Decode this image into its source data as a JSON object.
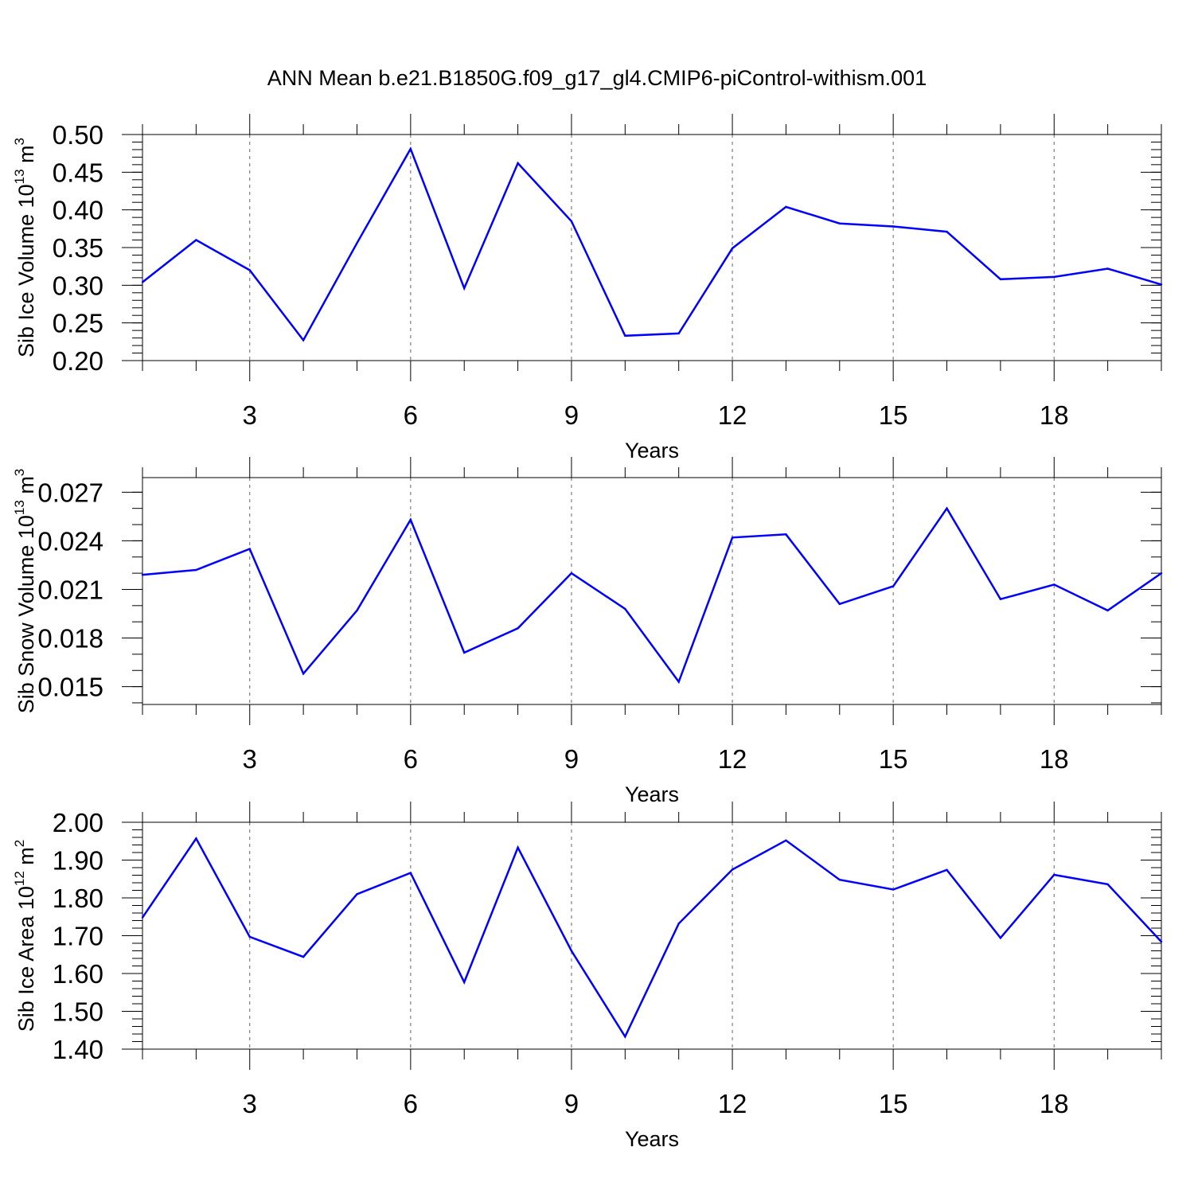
{
  "page_title": "ANN Mean b.e21.B1850G.f09_g17_gl4.CMIP6-piControl-withism.001",
  "colors": {
    "line": "#0000ff",
    "axis": "#000000",
    "grid": "#666666"
  },
  "chart_data": [
    {
      "type": "line",
      "ylabel_main": "Sib Ice Volume 10",
      "ylabel_exp": "13",
      "ylabel_unit": " m",
      "ylabel_unit_exp": "3",
      "xlabel": "Years",
      "xlim": [
        1,
        20
      ],
      "ylim": [
        0.2,
        0.5
      ],
      "yticks": [
        0.2,
        0.25,
        0.3,
        0.35,
        0.4,
        0.45,
        0.5
      ],
      "ytick_labels": [
        "0.20",
        "0.25",
        "0.30",
        "0.35",
        "0.40",
        "0.45",
        "0.50"
      ],
      "yminor_step": 0.01,
      "xticks": [
        3,
        6,
        9,
        12,
        15,
        18
      ],
      "xtick_labels": [
        "3",
        "6",
        "9",
        "12",
        "15",
        "18"
      ],
      "grid": "dashed vertical at major x ticks",
      "x": [
        1,
        2,
        3,
        4,
        5,
        6,
        7,
        8,
        9,
        10,
        11,
        12,
        13,
        14,
        15,
        16,
        17,
        18,
        19,
        20
      ],
      "values": [
        0.304,
        0.36,
        0.32,
        0.227,
        0.356,
        0.481,
        0.296,
        0.462,
        0.385,
        0.233,
        0.236,
        0.349,
        0.404,
        0.382,
        0.378,
        0.371,
        0.308,
        0.311,
        0.322,
        0.301
      ]
    },
    {
      "type": "line",
      "ylabel_main": "Sib Snow Volume 10",
      "ylabel_exp": "13",
      "ylabel_unit": " m",
      "ylabel_unit_exp": "3",
      "xlabel": "Years",
      "xlim": [
        1,
        20
      ],
      "ylim": [
        0.0139,
        0.0279
      ],
      "yticks": [
        0.015,
        0.018,
        0.021,
        0.024,
        0.027
      ],
      "ytick_labels": [
        "0.015",
        "0.018",
        "0.021",
        "0.024",
        "0.027"
      ],
      "yminor_step": 0.001,
      "xticks": [
        3,
        6,
        9,
        12,
        15,
        18
      ],
      "xtick_labels": [
        "3",
        "6",
        "9",
        "12",
        "15",
        "18"
      ],
      "grid": "dashed vertical at major x ticks",
      "x": [
        1,
        2,
        3,
        4,
        5,
        6,
        7,
        8,
        9,
        10,
        11,
        12,
        13,
        14,
        15,
        16,
        17,
        18,
        19,
        20
      ],
      "values": [
        0.0219,
        0.0222,
        0.0235,
        0.0158,
        0.0197,
        0.0253,
        0.0171,
        0.0186,
        0.022,
        0.0198,
        0.0153,
        0.0242,
        0.0244,
        0.0201,
        0.0212,
        0.026,
        0.0204,
        0.0213,
        0.0197,
        0.022
      ]
    },
    {
      "type": "line",
      "ylabel_main": "Sib Ice Area 10",
      "ylabel_exp": "12",
      "ylabel_unit": " m",
      "ylabel_unit_exp": "2",
      "xlabel": "Years",
      "xlim": [
        1,
        20
      ],
      "ylim": [
        1.4,
        2.0
      ],
      "yticks": [
        1.4,
        1.5,
        1.6,
        1.7,
        1.8,
        1.9,
        2.0
      ],
      "ytick_labels": [
        "1.40",
        "1.50",
        "1.60",
        "1.70",
        "1.80",
        "1.90",
        "2.00"
      ],
      "yminor_step": 0.02,
      "xticks": [
        3,
        6,
        9,
        12,
        15,
        18
      ],
      "xtick_labels": [
        "3",
        "6",
        "9",
        "12",
        "15",
        "18"
      ],
      "grid": "dashed vertical at major x ticks",
      "x": [
        1,
        2,
        3,
        4,
        5,
        6,
        7,
        8,
        9,
        10,
        11,
        12,
        13,
        14,
        15,
        16,
        17,
        18,
        19,
        20
      ],
      "values": [
        1.748,
        1.957,
        1.697,
        1.644,
        1.81,
        1.866,
        1.577,
        1.933,
        1.66,
        1.433,
        1.732,
        1.875,
        1.952,
        1.848,
        1.822,
        1.874,
        1.694,
        1.861,
        1.836,
        1.684
      ]
    }
  ]
}
